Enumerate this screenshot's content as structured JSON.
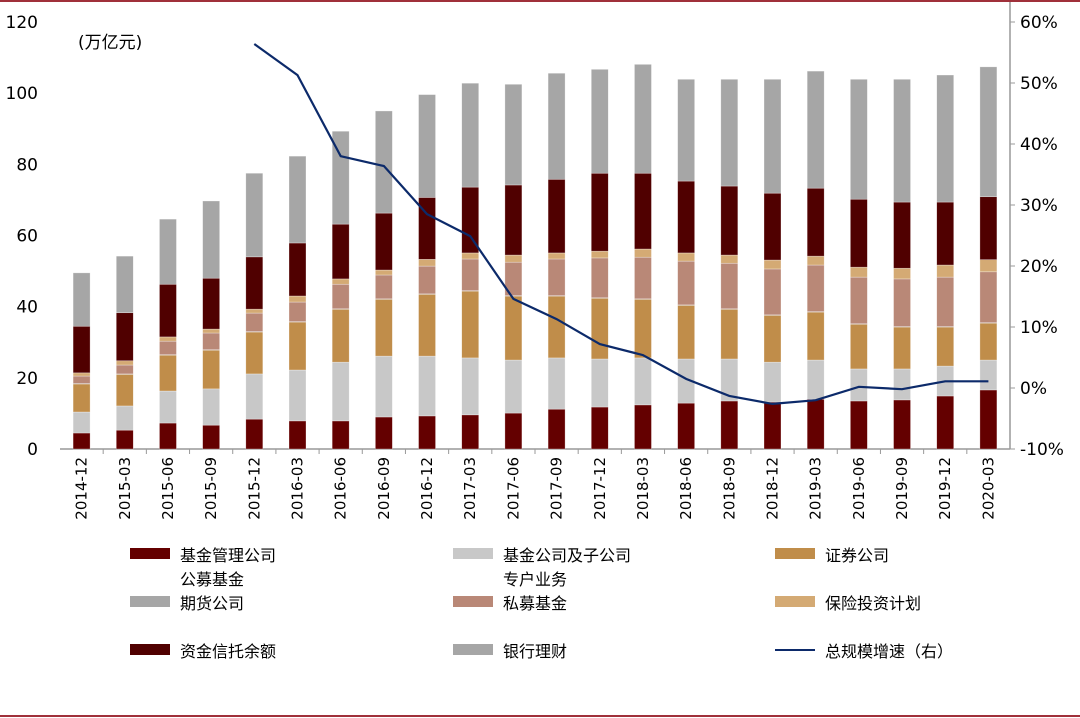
{
  "chart_data": {
    "type": "bar",
    "stacked": true,
    "unit_label": "(万亿元)",
    "categories": [
      "2014-12",
      "2015-03",
      "2015-06",
      "2015-09",
      "2015-12",
      "2016-03",
      "2016-06",
      "2016-09",
      "2016-12",
      "2017-03",
      "2017-06",
      "2017-09",
      "2017-12",
      "2018-03",
      "2018-06",
      "2018-09",
      "2018-12",
      "2019-03",
      "2019-06",
      "2019-09",
      "2019-12",
      "2020-03"
    ],
    "y_left": {
      "range": [
        0,
        120
      ],
      "ticks": [
        "0",
        "20",
        "40",
        "60",
        "80",
        "100",
        "120"
      ]
    },
    "y_right": {
      "range": [
        -10,
        60
      ],
      "ticks": [
        "-10%",
        "0%",
        "10%",
        "20%",
        "30%",
        "40%",
        "50%",
        "60%"
      ]
    },
    "grid": false,
    "legend_position": "bottom",
    "series": [
      {
        "name": "基金管理公司\n公募基金",
        "color": "#640000",
        "values": [
          4.5,
          5.3,
          7.3,
          6.7,
          8.4,
          7.9,
          7.9,
          9.0,
          9.3,
          9.6,
          10.1,
          11.2,
          11.8,
          12.4,
          12.9,
          13.5,
          13.2,
          14.0,
          13.5,
          13.8,
          14.9,
          16.6
        ]
      },
      {
        "name": "基金公司及子公司\n专户业务",
        "color": "#c8c8c8",
        "values": [
          5.9,
          6.8,
          9.0,
          10.2,
          12.7,
          14.3,
          16.5,
          17.1,
          16.8,
          16.0,
          14.9,
          14.4,
          13.5,
          13.2,
          12.4,
          11.8,
          11.2,
          11.0,
          9.0,
          8.7,
          8.4,
          8.4
        ]
      },
      {
        "name": "证券公司",
        "color": "#c08d4a",
        "values": [
          7.9,
          8.9,
          10.1,
          10.9,
          11.8,
          13.5,
          14.9,
          16.0,
          17.4,
          18.8,
          18.0,
          17.4,
          17.1,
          16.5,
          15.1,
          14.0,
          13.2,
          13.5,
          12.6,
          11.8,
          11.0,
          10.4
        ]
      },
      {
        "name": "期货公司",
        "color": "#a6a6a6",
        "values": [
          0.1,
          0.1,
          0.1,
          0.1,
          0.1,
          0.1,
          0.1,
          0.1,
          0.1,
          0.1,
          0.1,
          0.1,
          0.1,
          0.1,
          0.1,
          0.1,
          0.1,
          0.1,
          0.1,
          0.1,
          0.1,
          0.1
        ]
      },
      {
        "name": "私募基金",
        "color": "#b98877",
        "values": [
          2.1,
          2.5,
          3.8,
          4.7,
          5.2,
          5.5,
          6.9,
          6.7,
          7.8,
          8.9,
          9.4,
          10.3,
          11.2,
          11.7,
          12.3,
          12.8,
          12.9,
          13.1,
          13.1,
          13.4,
          13.9,
          14.3
        ]
      },
      {
        "name": "保险投资计划",
        "color": "#d4aa74",
        "values": [
          0.9,
          1.2,
          1.2,
          1.1,
          1.1,
          1.7,
          1.5,
          1.4,
          1.9,
          1.7,
          2.0,
          1.7,
          1.9,
          2.3,
          2.3,
          2.3,
          2.5,
          2.5,
          2.8,
          3.0,
          3.4,
          3.4
        ]
      },
      {
        "name": "资金信托余额",
        "color": "#500000",
        "values": [
          13.1,
          13.5,
          14.8,
          14.3,
          14.7,
          14.9,
          15.4,
          16.0,
          17.4,
          18.5,
          19.7,
          20.7,
          21.9,
          21.3,
          20.2,
          19.4,
          18.8,
          19.1,
          19.1,
          18.6,
          17.7,
          17.7
        ]
      },
      {
        "name": "银行理财",
        "color": "#a6a6a6",
        "values": [
          15.0,
          15.9,
          18.3,
          21.7,
          23.5,
          24.4,
          26.1,
          28.7,
          28.9,
          29.2,
          28.3,
          29.8,
          29.2,
          30.6,
          28.6,
          30.0,
          32.0,
          32.9,
          33.7,
          34.5,
          35.7,
          36.5
        ]
      }
    ],
    "line": {
      "name": "总规模增速（右）",
      "color": "#0c2a6a",
      "axis": "right",
      "unit": "%",
      "values": [
        null,
        null,
        null,
        null,
        56.4,
        51.3,
        38.0,
        36.4,
        28.5,
        24.9,
        14.6,
        11.3,
        7.2,
        5.4,
        1.5,
        -1.3,
        -2.6,
        -2.0,
        0.2,
        -0.2,
        1.1,
        1.1
      ]
    }
  },
  "colors": {
    "rule": "#a0303a",
    "axis": "#999999"
  }
}
